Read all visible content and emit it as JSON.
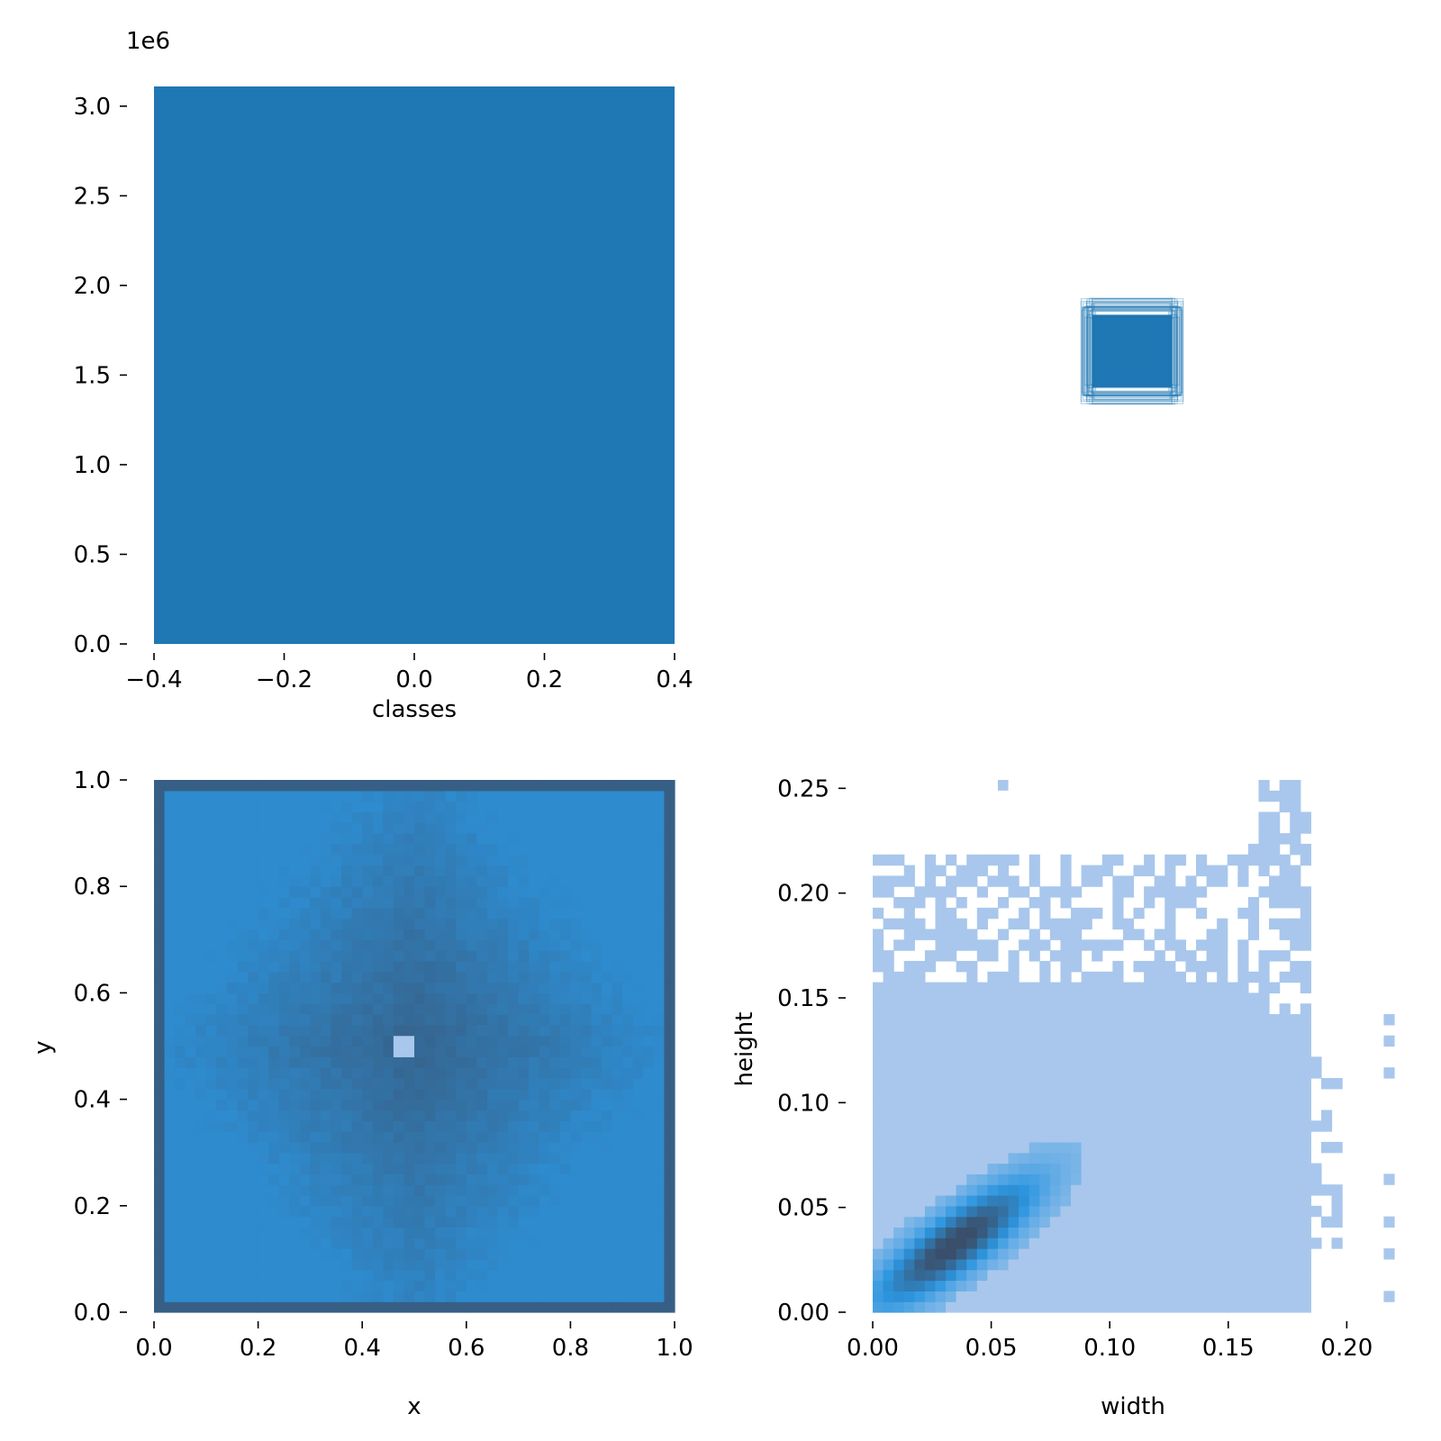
{
  "colors": {
    "bar": "#1f77b4",
    "hist_light": "#a9c7ec",
    "hist_mid": "#2c96e0",
    "hist_dark": "#3a4f6b",
    "box_stroke": "#1f77b4"
  },
  "chart_data": [
    {
      "id": "classes_hist",
      "type": "bar",
      "categories": [
        0
      ],
      "values": [
        3110000
      ],
      "xlabel": "classes",
      "ylabel": "",
      "offset_label": "1e6",
      "xlim": [
        -0.4,
        0.4
      ],
      "ylim": [
        0,
        3110000
      ],
      "xticks": [
        -0.4,
        -0.2,
        0.0,
        0.2,
        0.4
      ],
      "xtick_labels": [
        "−0.4",
        "−0.2",
        "0.0",
        "0.2",
        "0.4"
      ],
      "yticks": [
        0,
        500000,
        1000000,
        1500000,
        2000000,
        2500000,
        3000000
      ],
      "ytick_labels": [
        "0.0",
        "0.5",
        "1.0",
        "1.5",
        "2.0",
        "2.5",
        "3.0"
      ],
      "grid": false
    },
    {
      "id": "box_overlay",
      "type": "scatter",
      "description_visible": "overlaid label rectangles centered in panel",
      "grid": false
    },
    {
      "id": "xy_heatmap",
      "type": "heatmap",
      "xlabel": "x",
      "ylabel": "y",
      "xlim": [
        0,
        1
      ],
      "ylim": [
        0,
        1
      ],
      "xticks": [
        0.0,
        0.2,
        0.4,
        0.6,
        0.8,
        1.0
      ],
      "xtick_labels": [
        "0.0",
        "0.2",
        "0.4",
        "0.6",
        "0.8",
        "1.0"
      ],
      "yticks": [
        0.0,
        0.2,
        0.4,
        0.6,
        0.8,
        1.0
      ],
      "ytick_labels": [
        "0.0",
        "0.2",
        "0.4",
        "0.6",
        "0.8",
        "1.0"
      ],
      "bins": 50,
      "grid": false
    },
    {
      "id": "wh_heatmap",
      "type": "heatmap",
      "xlabel": "width",
      "ylabel": "height",
      "xlim": [
        0,
        0.22
      ],
      "ylim": [
        0,
        0.254
      ],
      "xticks": [
        0.0,
        0.05,
        0.1,
        0.15,
        0.2
      ],
      "xtick_labels": [
        "0.00",
        "0.05",
        "0.10",
        "0.15",
        "0.20"
      ],
      "yticks": [
        0.0,
        0.05,
        0.1,
        0.15,
        0.2,
        0.25
      ],
      "ytick_labels": [
        "0.00",
        "0.05",
        "0.10",
        "0.15",
        "0.20",
        "0.25"
      ],
      "bins": 50,
      "grid": false
    }
  ]
}
